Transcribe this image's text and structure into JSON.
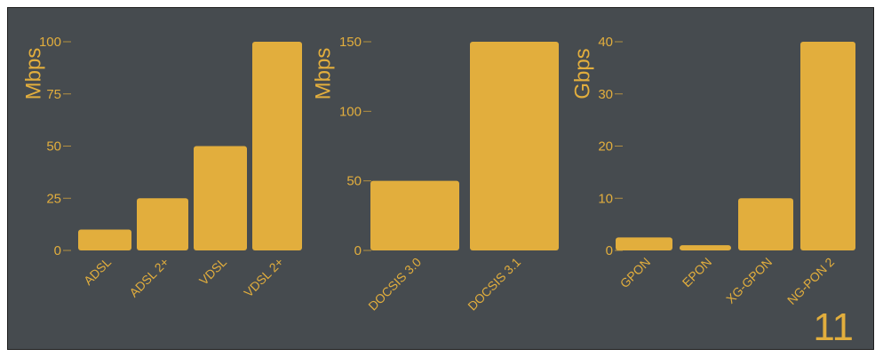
{
  "colors": {
    "background": "#464b4f",
    "bar": "#e2ae3d",
    "text": "#e2ae3d"
  },
  "slide_number": "11",
  "chart_data": [
    {
      "type": "bar",
      "categories": [
        "ADSL",
        "ADSL 2+",
        "VDSL",
        "VDSL 2+"
      ],
      "values": [
        10,
        25,
        50,
        100
      ],
      "ylabel": "Mbps",
      "yticks": [
        0,
        25,
        50,
        75,
        100
      ],
      "ylim": [
        0,
        100
      ],
      "grid": false
    },
    {
      "type": "bar",
      "categories": [
        "DOCSIS 3.0",
        "DOCSIS 3.1"
      ],
      "values": [
        50,
        150
      ],
      "ylabel": "Mbps",
      "yticks": [
        0,
        50,
        100,
        150
      ],
      "ylim": [
        0,
        150
      ],
      "grid": false
    },
    {
      "type": "bar",
      "categories": [
        "GPON",
        "EPON",
        "XG-GPON",
        "NG-PON 2"
      ],
      "values": [
        2.5,
        1,
        10,
        40
      ],
      "ylabel": "Gbps",
      "yticks": [
        0,
        10,
        20,
        30,
        40
      ],
      "ylim": [
        0,
        40
      ],
      "grid": false
    }
  ]
}
